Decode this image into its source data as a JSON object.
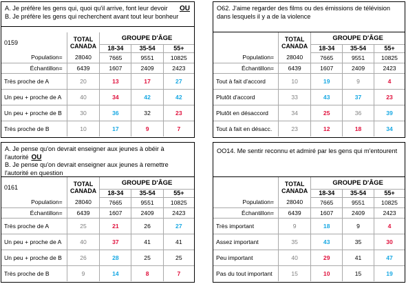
{
  "panels": [
    {
      "q_a": "A. Je préfère les gens qui, quoi qu'il arrive, font leur devoir",
      "q_b": "B. Je préfère les gens qui recherchent avant tout leur bonheur",
      "ou": "OU",
      "code": "0159",
      "total_label": "TOTAL CANADA",
      "group_label": "GROUPE D'ÂGE",
      "ages": [
        "18-34",
        "35-54",
        "55+"
      ],
      "population_label": "Population=",
      "population": [
        "28040",
        "7665",
        "9551",
        "10825"
      ],
      "sample_label": "Échantillon=",
      "sample": [
        "6439",
        "1607",
        "2409",
        "2423"
      ],
      "rows": [
        {
          "label": "Très proche de A",
          "total": "20",
          "v": [
            "13",
            "17",
            "27"
          ],
          "c": [
            "red",
            "red",
            "blue"
          ]
        },
        {
          "label": "Un peu + proche de A",
          "total": "40",
          "v": [
            "34",
            "42",
            "42"
          ],
          "c": [
            "red",
            "blue",
            "blue"
          ]
        },
        {
          "label": "Un peu + proche de B",
          "total": "30",
          "v": [
            "36",
            "32",
            "23"
          ],
          "c": [
            "blue",
            "blk",
            "red"
          ]
        },
        {
          "label": "Très proche de B",
          "total": "10",
          "v": [
            "17",
            "9",
            "7"
          ],
          "c": [
            "blue",
            "red",
            "red"
          ]
        }
      ]
    },
    {
      "q": "O62. J'aime regarder des films ou des émissions de télévision dans lesquels il y a de la violence",
      "total_label": "TOTAL CANADA",
      "group_label": "GROUPE D'ÂGE",
      "ages": [
        "18-34",
        "35-54",
        "55+"
      ],
      "population_label": "Population=",
      "population": [
        "28040",
        "7665",
        "9551",
        "10825"
      ],
      "sample_label": "Échantillon=",
      "sample": [
        "6439",
        "1607",
        "2409",
        "2423"
      ],
      "rows": [
        {
          "label": "Tout à fait d'accord",
          "total": "10",
          "v": [
            "19",
            "9",
            "4"
          ],
          "c": [
            "blue",
            "gry",
            "red"
          ]
        },
        {
          "label": "Plutôt d'accord",
          "total": "33",
          "v": [
            "43",
            "37",
            "23"
          ],
          "c": [
            "blue",
            "blue",
            "red"
          ]
        },
        {
          "label": "Plutôt en désaccord",
          "total": "34",
          "v": [
            "25",
            "36",
            "39"
          ],
          "c": [
            "red",
            "gry",
            "blue"
          ]
        },
        {
          "label": "Tout à fait en désacc.",
          "total": "23",
          "v": [
            "12",
            "18",
            "34"
          ],
          "c": [
            "red",
            "red",
            "blue"
          ]
        }
      ]
    },
    {
      "q_a": "A. Je pense qu'on devrait enseigner aux jeunes à obéir à l'autorité",
      "q_b": "B. Je pense qu'on devrait enseigner aux jeunes à remettre l'autorité en question",
      "ou": "OU",
      "code": "0161",
      "total_label": "TOTAL CANADA",
      "group_label": "GROUPE D'ÂGE",
      "ages": [
        "18-34",
        "35-54",
        "55+"
      ],
      "population_label": "Population=",
      "population": [
        "28040",
        "7665",
        "9551",
        "10825"
      ],
      "sample_label": "Échantillon=",
      "sample": [
        "6439",
        "1607",
        "2409",
        "2423"
      ],
      "rows": [
        {
          "label": "Très proche de A",
          "total": "25",
          "v": [
            "21",
            "26",
            "27"
          ],
          "c": [
            "red",
            "blk",
            "blue"
          ]
        },
        {
          "label": "Un peu + proche de A",
          "total": "40",
          "v": [
            "37",
            "41",
            "41"
          ],
          "c": [
            "red",
            "blk",
            "blk"
          ]
        },
        {
          "label": "Un peu + proche de B",
          "total": "26",
          "v": [
            "28",
            "25",
            "25"
          ],
          "c": [
            "blue",
            "blk",
            "blk"
          ]
        },
        {
          "label": "Très proche de B",
          "total": "9",
          "v": [
            "14",
            "8",
            "7"
          ],
          "c": [
            "blue",
            "red",
            "red"
          ]
        }
      ]
    },
    {
      "q": "OO14. Me sentir reconnu et admiré par les gens qui m'entourent",
      "total_label": "TOTAL CANADA",
      "group_label": "GROUPE D'ÂGE",
      "ages": [
        "18-34",
        "35-54",
        "55+"
      ],
      "population_label": "Population=",
      "population": [
        "28040",
        "7665",
        "9551",
        "10825"
      ],
      "sample_label": "Échantillon=",
      "sample": [
        "6439",
        "1607",
        "2409",
        "2423"
      ],
      "rows": [
        {
          "label": "Très important",
          "total": "9",
          "v": [
            "18",
            "9",
            "4"
          ],
          "c": [
            "blue",
            "blk",
            "red"
          ]
        },
        {
          "label": "Assez important",
          "total": "35",
          "v": [
            "43",
            "35",
            "30"
          ],
          "c": [
            "blue",
            "blk",
            "red"
          ]
        },
        {
          "label": "Peu important",
          "total": "40",
          "v": [
            "29",
            "41",
            "47"
          ],
          "c": [
            "red",
            "blk",
            "blue"
          ]
        },
        {
          "label": "Pas du tout important",
          "total": "15",
          "v": [
            "10",
            "15",
            "19"
          ],
          "c": [
            "red",
            "blk",
            "blue"
          ]
        }
      ]
    }
  ],
  "colors": {
    "red": "#e0103c",
    "blue": "#17a8e3",
    "gray": "#808080"
  }
}
